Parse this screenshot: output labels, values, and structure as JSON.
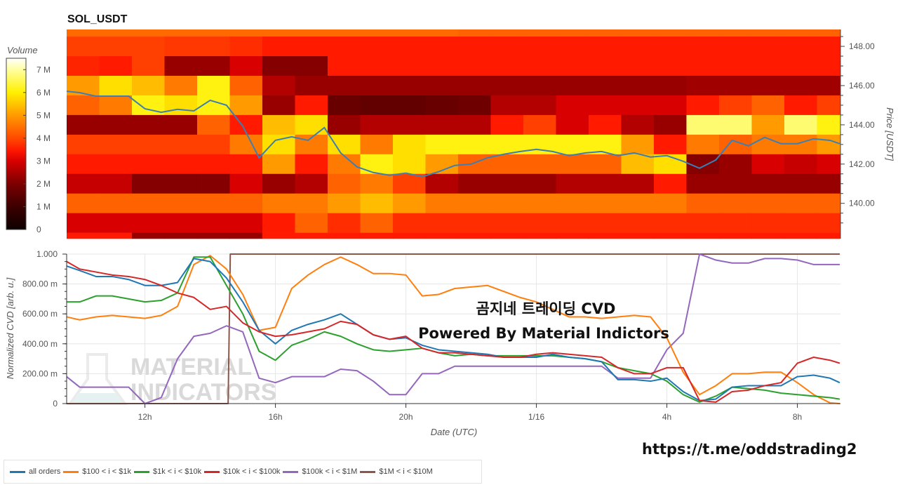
{
  "title": "SOL_USDT",
  "overlay": {
    "line1": "곰지네 트레이딩 CVD",
    "line2": "Powered By Material Indictors"
  },
  "watermark": {
    "line1": "MATERIAL",
    "line2": "INDICATORS",
    "icon": "flask-icon"
  },
  "link": "https://t.me/oddstrading2",
  "chart_data": [
    {
      "type": "heatmap",
      "title": "SOL_USDT",
      "ylabel": "Price [USDT]",
      "ylim": [
        138.2,
        148.86
      ],
      "yticks": [
        {
          "value": 140,
          "label": "140.00"
        },
        {
          "value": 142,
          "label": "142.00"
        },
        {
          "value": 144,
          "label": "144.00"
        },
        {
          "value": 146,
          "label": "146.00"
        },
        {
          "value": 148,
          "label": "148.00"
        }
      ],
      "colorbar": {
        "label": "Volume",
        "range": [
          0,
          7.5
        ],
        "ticks": [
          {
            "value": 0,
            "label": "0"
          },
          {
            "value": 1,
            "label": "1 M"
          },
          {
            "value": 2,
            "label": "2 M"
          },
          {
            "value": 3,
            "label": "3 M"
          },
          {
            "value": 4,
            "label": "4 M"
          },
          {
            "value": 5,
            "label": "5 M"
          },
          {
            "value": 6,
            "label": "6 M"
          },
          {
            "value": 7,
            "label": "7 M"
          }
        ],
        "colorscale": [
          [
            0,
            "#0d0000"
          ],
          [
            1,
            "#3c0000"
          ],
          [
            2,
            "#7c0000"
          ],
          [
            3,
            "#d80000"
          ],
          [
            3.5,
            "#ff1a00"
          ],
          [
            4,
            "#ff4a00"
          ],
          [
            5,
            "#ff9a00"
          ],
          [
            6,
            "#fff000"
          ],
          [
            7,
            "#ffffa0"
          ],
          [
            7.5,
            "#ffffff"
          ]
        ]
      },
      "time_range": [
        "1/15 09:36",
        "1/16 09:18"
      ],
      "price_levels": [
        149,
        148,
        147,
        146,
        145,
        144,
        143,
        142,
        141,
        140,
        139,
        138
      ],
      "time_bins": [
        "1/15 09:36",
        "1/15 10:36",
        "1/15 11:36",
        "1/15 12:36",
        "1/15 13:36",
        "1/15 14:36",
        "1/15 15:36",
        "1/15 16:36",
        "1/15 17:36",
        "1/15 18:36",
        "1/15 19:36",
        "1/15 20:36",
        "1/15 21:36",
        "1/15 22:36",
        "1/15 23:36",
        "1/16 00:36",
        "1/16 01:36",
        "1/16 02:36",
        "1/16 03:36",
        "1/16 04:36",
        "1/16 05:36",
        "1/16 06:36",
        "1/16 07:36",
        "1/16 08:36"
      ],
      "volume_M": [
        [
          4.4,
          4.4,
          4.4,
          4.4,
          4.4,
          4.4,
          4.4,
          4.4,
          4.4,
          4.4,
          4.4,
          4.4,
          4.3,
          4.3,
          4.3,
          4.3,
          4.3,
          4.3,
          4.3,
          4.3,
          4.3,
          4.3,
          4.3,
          4.3
        ],
        [
          3.9,
          3.9,
          3.9,
          3.8,
          3.8,
          3.7,
          3.5,
          3.5,
          3.5,
          3.5,
          3.5,
          3.5,
          3.5,
          3.5,
          3.5,
          3.5,
          3.5,
          3.5,
          3.5,
          3.5,
          3.5,
          3.5,
          3.5,
          3.5
        ],
        [
          3.6,
          3.5,
          3.9,
          2.3,
          2.3,
          3.0,
          2.1,
          2.1,
          3.5,
          3.5,
          3.5,
          3.5,
          3.5,
          3.5,
          3.5,
          3.5,
          3.5,
          3.5,
          3.5,
          3.5,
          3.5,
          3.5,
          3.5,
          3.5
        ],
        [
          5.0,
          5.8,
          5.4,
          4.6,
          6.1,
          4.3,
          2.6,
          2.3,
          2.3,
          2.3,
          2.3,
          2.3,
          2.3,
          2.3,
          2.3,
          2.3,
          2.3,
          2.3,
          2.3,
          2.4,
          2.4,
          2.4,
          2.4,
          2.4
        ],
        [
          4.3,
          4.6,
          6.1,
          5.8,
          6.1,
          5.0,
          2.3,
          3.5,
          1.7,
          1.6,
          1.6,
          1.7,
          1.8,
          2.6,
          2.6,
          3.0,
          3.0,
          3.0,
          3.0,
          3.5,
          3.9,
          4.3,
          3.5,
          3.9
        ],
        [
          2.3,
          2.3,
          2.3,
          2.3,
          4.3,
          3.5,
          5.4,
          5.8,
          2.3,
          2.6,
          2.6,
          2.6,
          2.6,
          3.5,
          3.9,
          3.0,
          3.5,
          2.6,
          2.3,
          6.7,
          6.7,
          5.0,
          6.7,
          6.1
        ],
        [
          3.9,
          3.9,
          3.9,
          3.9,
          3.9,
          4.6,
          5.8,
          4.6,
          5.8,
          4.6,
          5.8,
          6.1,
          6.1,
          6.1,
          6.1,
          6.1,
          6.1,
          5.0,
          3.5,
          4.6,
          4.3,
          4.6,
          4.6,
          5.0
        ],
        [
          3.5,
          3.5,
          3.5,
          3.5,
          3.5,
          3.5,
          5.0,
          3.5,
          4.6,
          6.1,
          5.8,
          5.0,
          4.3,
          4.3,
          4.3,
          4.3,
          4.3,
          5.4,
          5.8,
          2.1,
          2.3,
          3.0,
          2.8,
          3.0
        ],
        [
          2.8,
          2.8,
          2.1,
          2.1,
          2.1,
          3.0,
          2.3,
          2.6,
          4.3,
          4.6,
          3.9,
          2.6,
          2.3,
          2.3,
          2.3,
          2.6,
          2.6,
          2.6,
          3.5,
          2.3,
          2.3,
          2.3,
          2.3,
          2.3
        ],
        [
          4.3,
          4.3,
          4.3,
          4.3,
          4.3,
          4.3,
          4.6,
          4.6,
          5.0,
          5.4,
          5.0,
          4.6,
          4.6,
          4.6,
          4.6,
          4.6,
          4.6,
          4.6,
          4.6,
          4.3,
          4.3,
          4.3,
          4.3,
          4.3
        ],
        [
          3.0,
          3.0,
          3.0,
          3.0,
          3.0,
          3.0,
          3.5,
          4.3,
          3.7,
          4.3,
          3.7,
          3.7,
          3.7,
          3.7,
          3.7,
          3.7,
          3.7,
          3.7,
          3.7,
          3.7,
          3.7,
          3.7,
          3.7,
          3.7
        ],
        [
          3.5,
          3.5,
          2.3,
          2.3,
          2.3,
          2.3,
          3.5,
          3.5,
          3.5,
          3.5,
          3.5,
          3.5,
          3.5,
          3.5,
          3.5,
          3.5,
          3.5,
          3.5,
          3.5,
          3.5,
          3.5,
          3.5,
          3.5,
          3.5
        ]
      ],
      "price_line": {
        "color": "#3b7fb5",
        "times": [
          "1/15 09:36",
          "1/15 10:00",
          "1/15 10:30",
          "1/15 11:00",
          "1/15 11:30",
          "1/15 12:00",
          "1/15 12:30",
          "1/15 13:00",
          "1/15 13:30",
          "1/15 14:00",
          "1/15 14:30",
          "1/15 15:00",
          "1/15 15:30",
          "1/15 16:00",
          "1/15 16:30",
          "1/15 17:00",
          "1/15 17:30",
          "1/15 18:00",
          "1/15 18:30",
          "1/15 19:00",
          "1/15 19:30",
          "1/15 20:00",
          "1/15 20:30",
          "1/15 21:00",
          "1/15 21:30",
          "1/15 22:00",
          "1/15 22:30",
          "1/15 23:00",
          "1/15 23:30",
          "1/16 00:00",
          "1/16 00:30",
          "1/16 01:00",
          "1/16 01:30",
          "1/16 02:00",
          "1/16 02:30",
          "1/16 03:00",
          "1/16 03:30",
          "1/16 04:00",
          "1/16 04:30",
          "1/16 05:00",
          "1/16 05:30",
          "1/16 06:00",
          "1/16 06:30",
          "1/16 07:00",
          "1/16 07:30",
          "1/16 08:00",
          "1/16 08:30",
          "1/16 09:00",
          "1/16 09:18"
        ],
        "values": [
          145.71,
          145.64,
          145.46,
          145.46,
          145.46,
          144.82,
          144.64,
          144.79,
          144.71,
          145.25,
          145.0,
          143.93,
          142.32,
          143.21,
          143.39,
          143.21,
          143.86,
          142.57,
          141.86,
          141.57,
          141.43,
          141.54,
          141.36,
          141.61,
          141.93,
          142.0,
          142.32,
          142.5,
          142.64,
          142.75,
          142.64,
          142.43,
          142.57,
          142.64,
          142.43,
          142.57,
          142.36,
          142.43,
          142.14,
          141.79,
          142.21,
          143.21,
          142.93,
          143.36,
          143.04,
          143.04,
          143.29,
          143.21,
          143.04
        ]
      }
    },
    {
      "type": "line",
      "xlabel": "Date (UTC)",
      "ylabel": "Normalized CVD [arb. u.]",
      "ylim": [
        0,
        1
      ],
      "grid": true,
      "legend": "bottom-left",
      "xticks": [
        {
          "time": "1/15 12:00",
          "label": "12h"
        },
        {
          "time": "1/15 16:00",
          "label": "16h"
        },
        {
          "time": "1/15 20:00",
          "label": "20h"
        },
        {
          "time": "1/16 00:00",
          "label": "1/16"
        },
        {
          "time": "1/16 04:00",
          "label": "4h"
        },
        {
          "time": "1/16 08:00",
          "label": "8h"
        }
      ],
      "yticks": [
        {
          "value": 0,
          "label": "0"
        },
        {
          "value": 0.2,
          "label": "200.00 m"
        },
        {
          "value": 0.4,
          "label": "400.00 m"
        },
        {
          "value": 0.6,
          "label": "600.00 m"
        },
        {
          "value": 0.8,
          "label": "800.00 m"
        },
        {
          "value": 1,
          "label": "1.000"
        }
      ],
      "times": [
        "1/15 09:36",
        "1/15 10:00",
        "1/15 10:30",
        "1/15 11:00",
        "1/15 11:30",
        "1/15 12:00",
        "1/15 12:30",
        "1/15 13:00",
        "1/15 13:30",
        "1/15 14:00",
        "1/15 14:30",
        "1/15 15:00",
        "1/15 15:30",
        "1/15 16:00",
        "1/15 16:30",
        "1/15 17:00",
        "1/15 17:30",
        "1/15 18:00",
        "1/15 18:30",
        "1/15 19:00",
        "1/15 19:30",
        "1/15 20:00",
        "1/15 20:30",
        "1/15 21:00",
        "1/15 21:30",
        "1/15 22:00",
        "1/15 22:30",
        "1/15 23:00",
        "1/15 23:30",
        "1/16 00:00",
        "1/16 00:30",
        "1/16 01:00",
        "1/16 01:30",
        "1/16 02:00",
        "1/16 02:30",
        "1/16 03:00",
        "1/16 03:30",
        "1/16 04:00",
        "1/16 04:30",
        "1/16 05:00",
        "1/16 05:30",
        "1/16 06:00",
        "1/16 06:30",
        "1/16 07:00",
        "1/16 07:30",
        "1/16 08:00",
        "1/16 08:30",
        "1/16 09:00",
        "1/16 09:18"
      ],
      "series": [
        {
          "name": "all orders",
          "color": "#1f77b4",
          "values": [
            0.92,
            0.89,
            0.85,
            0.85,
            0.83,
            0.79,
            0.79,
            0.81,
            0.97,
            0.95,
            0.84,
            0.68,
            0.49,
            0.4,
            0.49,
            0.53,
            0.56,
            0.6,
            0.53,
            0.46,
            0.43,
            0.44,
            0.39,
            0.36,
            0.35,
            0.34,
            0.33,
            0.31,
            0.31,
            0.31,
            0.33,
            0.31,
            0.3,
            0.28,
            0.16,
            0.16,
            0.15,
            0.17,
            0.08,
            0.02,
            0.03,
            0.11,
            0.12,
            0.12,
            0.12,
            0.18,
            0.19,
            0.17,
            0.14
          ]
        },
        {
          "name": "$100 < i < $1k",
          "color": "#ff7f0e",
          "values": [
            0.58,
            0.56,
            0.58,
            0.59,
            0.58,
            0.57,
            0.59,
            0.65,
            0.93,
            0.99,
            0.9,
            0.73,
            0.49,
            0.51,
            0.77,
            0.86,
            0.93,
            0.98,
            0.93,
            0.87,
            0.87,
            0.86,
            0.72,
            0.73,
            0.77,
            0.78,
            0.79,
            0.75,
            0.71,
            0.68,
            0.63,
            0.58,
            0.58,
            0.57,
            0.58,
            0.59,
            0.58,
            0.44,
            0.21,
            0.06,
            0.12,
            0.2,
            0.2,
            0.21,
            0.21,
            0.14,
            0.06,
            0.005,
            0
          ]
        },
        {
          "name": "$1k < i < $10k",
          "color": "#2ca02c",
          "values": [
            0.68,
            0.68,
            0.72,
            0.72,
            0.7,
            0.68,
            0.69,
            0.74,
            0.98,
            0.98,
            0.79,
            0.6,
            0.35,
            0.29,
            0.39,
            0.43,
            0.48,
            0.45,
            0.4,
            0.36,
            0.35,
            0.36,
            0.37,
            0.34,
            0.32,
            0.33,
            0.32,
            0.32,
            0.32,
            0.32,
            0.32,
            0.31,
            0.3,
            0.28,
            0.24,
            0.22,
            0.2,
            0.15,
            0.06,
            0.01,
            0.05,
            0.11,
            0.1,
            0.09,
            0.07,
            0.06,
            0.05,
            0.04,
            0.03
          ]
        },
        {
          "name": "$10k < i < $100k",
          "color": "#d62728",
          "values": [
            0.95,
            0.9,
            0.88,
            0.86,
            0.85,
            0.83,
            0.79,
            0.74,
            0.71,
            0.63,
            0.65,
            0.54,
            0.48,
            0.45,
            0.46,
            0.48,
            0.5,
            0.55,
            0.53,
            0.46,
            0.43,
            0.45,
            0.37,
            0.34,
            0.34,
            0.33,
            0.32,
            0.31,
            0.31,
            0.33,
            0.34,
            0.33,
            0.32,
            0.31,
            0.24,
            0.2,
            0.2,
            0.24,
            0.24,
            0.02,
            0.01,
            0.08,
            0.09,
            0.12,
            0.14,
            0.27,
            0.31,
            0.29,
            0.27
          ]
        },
        {
          "name": "$100k < i < $1M",
          "color": "#9467bd",
          "values": [
            0.18,
            0.11,
            0.11,
            0.11,
            0.11,
            0.0,
            0.04,
            0.3,
            0.45,
            0.47,
            0.52,
            0.48,
            0.17,
            0.14,
            0.18,
            0.18,
            0.18,
            0.23,
            0.22,
            0.15,
            0.06,
            0.06,
            0.2,
            0.2,
            0.25,
            0.25,
            0.25,
            0.25,
            0.25,
            0.25,
            0.25,
            0.25,
            0.25,
            0.25,
            0.17,
            0.17,
            0.17,
            0.36,
            0.47,
            1.0,
            0.96,
            0.94,
            0.94,
            0.97,
            0.97,
            0.96,
            0.93,
            0.93,
            0.93
          ]
        },
        {
          "name": "$1M < i < $10M",
          "color": "#8c564b",
          "points": [
            [
              "1/15 09:36",
              0
            ],
            [
              "1/15 14:33",
              0
            ],
            [
              "1/15 14:37",
              1
            ],
            [
              "1/16 09:18",
              1
            ]
          ]
        }
      ]
    }
  ]
}
